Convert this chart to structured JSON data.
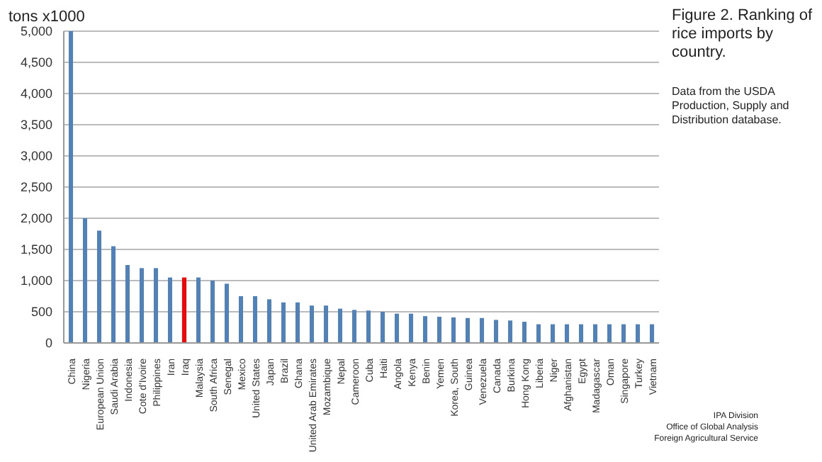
{
  "chart_data": {
    "type": "bar",
    "title": "Figure 2.  Ranking of rice imports by country.",
    "ylabel": "tons x1000",
    "categories": [
      "China",
      "Nigeria",
      "European Union",
      "Saudi Arabia",
      "Indonesia",
      "Cote d'Ivoire",
      "Philippines",
      "Iran",
      "Iraq",
      "Malaysia",
      "South Africa",
      "Senegal",
      "Mexico",
      "United States",
      "Japan",
      "Brazil",
      "Ghana",
      "United Arab Emirates",
      "Mozambique",
      "Nepal",
      "Cameroon",
      "Cuba",
      "Haiti",
      "Angola",
      "Kenya",
      "Benin",
      "Yemen",
      "Korea, South",
      "Guinea",
      "Venezuela",
      "Canada",
      "Burkina",
      "Hong Kong",
      "Liberia",
      "Niger",
      "Afghanistan",
      "Egypt",
      "Madagascar",
      "Oman",
      "Singapore",
      "Turkey",
      "Vietnam"
    ],
    "values": [
      5000,
      2000,
      1800,
      1550,
      1250,
      1200,
      1200,
      1050,
      1050,
      1050,
      1000,
      950,
      750,
      750,
      700,
      650,
      650,
      600,
      600,
      550,
      530,
      520,
      500,
      470,
      470,
      430,
      420,
      410,
      400,
      400,
      370,
      360,
      340,
      300,
      300,
      300,
      300,
      300,
      300,
      300,
      300,
      300
    ],
    "colors": [
      "#4f81bd",
      "#4f81bd",
      "#4f81bd",
      "#4f81bd",
      "#4f81bd",
      "#4f81bd",
      "#4f81bd",
      "#4f81bd",
      "#ff0000",
      "#4f81bd",
      "#4f81bd",
      "#4f81bd",
      "#4f81bd",
      "#4f81bd",
      "#4f81bd",
      "#4f81bd",
      "#4f81bd",
      "#4f81bd",
      "#4f81bd",
      "#4f81bd",
      "#4f81bd",
      "#4f81bd",
      "#4f81bd",
      "#4f81bd",
      "#4f81bd",
      "#4f81bd",
      "#4f81bd",
      "#4f81bd",
      "#4f81bd",
      "#4f81bd",
      "#4f81bd",
      "#4f81bd",
      "#4f81bd",
      "#4f81bd",
      "#4f81bd",
      "#4f81bd",
      "#4f81bd",
      "#4f81bd",
      "#4f81bd",
      "#4f81bd",
      "#4f81bd",
      "#4f81bd"
    ],
    "ylim": [
      0,
      5000
    ],
    "yticks": [
      0,
      500,
      {
        "value": 1000,
        "label": "1,000"
      },
      {
        "value": 1500,
        "label": "1,500"
      },
      {
        "value": 2000,
        "label": "2,000"
      },
      {
        "value": 2500,
        "label": "2,500"
      },
      {
        "value": 3000,
        "label": "3,000"
      },
      {
        "value": 3500,
        "label": "3,500"
      },
      {
        "value": 4000,
        "label": "4,000"
      },
      {
        "value": 4500,
        "label": "4,500"
      },
      {
        "value": 5000,
        "label": "5,000"
      }
    ],
    "grid": "y",
    "annotations": [
      "Data from the USDA Production, Supply and Distribution database.",
      "IPA Division",
      "Office of Global Analysis",
      "Foreign Agricultural Service"
    ]
  }
}
